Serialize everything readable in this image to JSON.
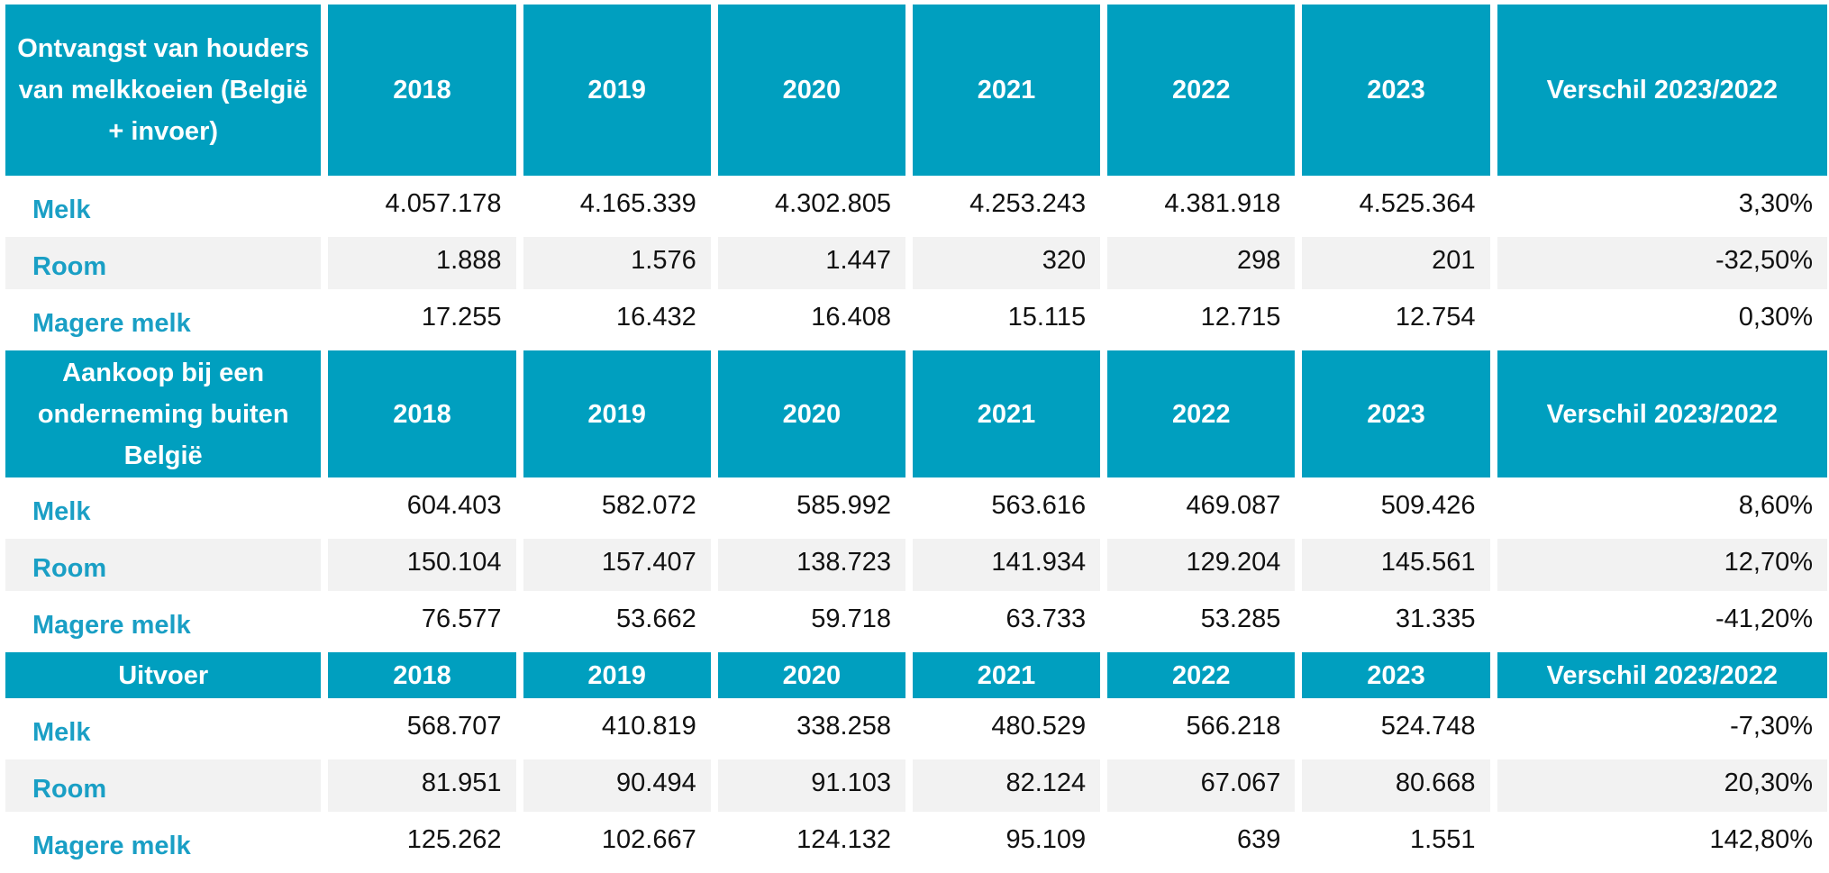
{
  "sections": [
    {
      "title": "Ontvangst van houders van melkkoeien (België + invoer)",
      "years": [
        "2018",
        "2019",
        "2020",
        "2021",
        "2022",
        "2023"
      ],
      "diff_label": "Verschil 2023/2022",
      "rows": [
        {
          "label": "Melk",
          "values": [
            "4.057.178",
            "4.165.339",
            "4.302.805",
            "4.253.243",
            "4.381.918",
            "4.525.364"
          ],
          "diff": "3,30%"
        },
        {
          "label": "Room",
          "values": [
            "1.888",
            "1.576",
            "1.447",
            "320",
            "298",
            "201"
          ],
          "diff": "-32,50%"
        },
        {
          "label": "Magere melk",
          "values": [
            "17.255",
            "16.432",
            "16.408",
            "15.115",
            "12.715",
            "12.754"
          ],
          "diff": "0,30%"
        }
      ]
    },
    {
      "title": "Aankoop bij een onderneming buiten België",
      "years": [
        "2018",
        "2019",
        "2020",
        "2021",
        "2022",
        "2023"
      ],
      "diff_label": "Verschil 2023/2022",
      "rows": [
        {
          "label": "Melk",
          "values": [
            "604.403",
            "582.072",
            "585.992",
            "563.616",
            "469.087",
            "509.426"
          ],
          "diff": "8,60%"
        },
        {
          "label": "Room",
          "values": [
            "150.104",
            "157.407",
            "138.723",
            "141.934",
            "129.204",
            "145.561"
          ],
          "diff": "12,70%"
        },
        {
          "label": "Magere melk",
          "values": [
            "76.577",
            "53.662",
            "59.718",
            "63.733",
            "53.285",
            "31.335"
          ],
          "diff": "-41,20%"
        }
      ]
    },
    {
      "title": "Uitvoer",
      "years": [
        "2018",
        "2019",
        "2020",
        "2021",
        "2022",
        "2023"
      ],
      "diff_label": "Verschil 2023/2022",
      "rows": [
        {
          "label": "Melk",
          "values": [
            "568.707",
            "410.819",
            "338.258",
            "480.529",
            "566.218",
            "524.748"
          ],
          "diff": "-7,30%"
        },
        {
          "label": "Room",
          "values": [
            "81.951",
            "90.494",
            "91.103",
            "82.124",
            "67.067",
            "80.668"
          ],
          "diff": "20,30%"
        },
        {
          "label": "Magere melk",
          "values": [
            "125.262",
            "102.667",
            "124.132",
            "95.109",
            "639",
            "1.551"
          ],
          "diff": "142,80%"
        }
      ]
    }
  ]
}
